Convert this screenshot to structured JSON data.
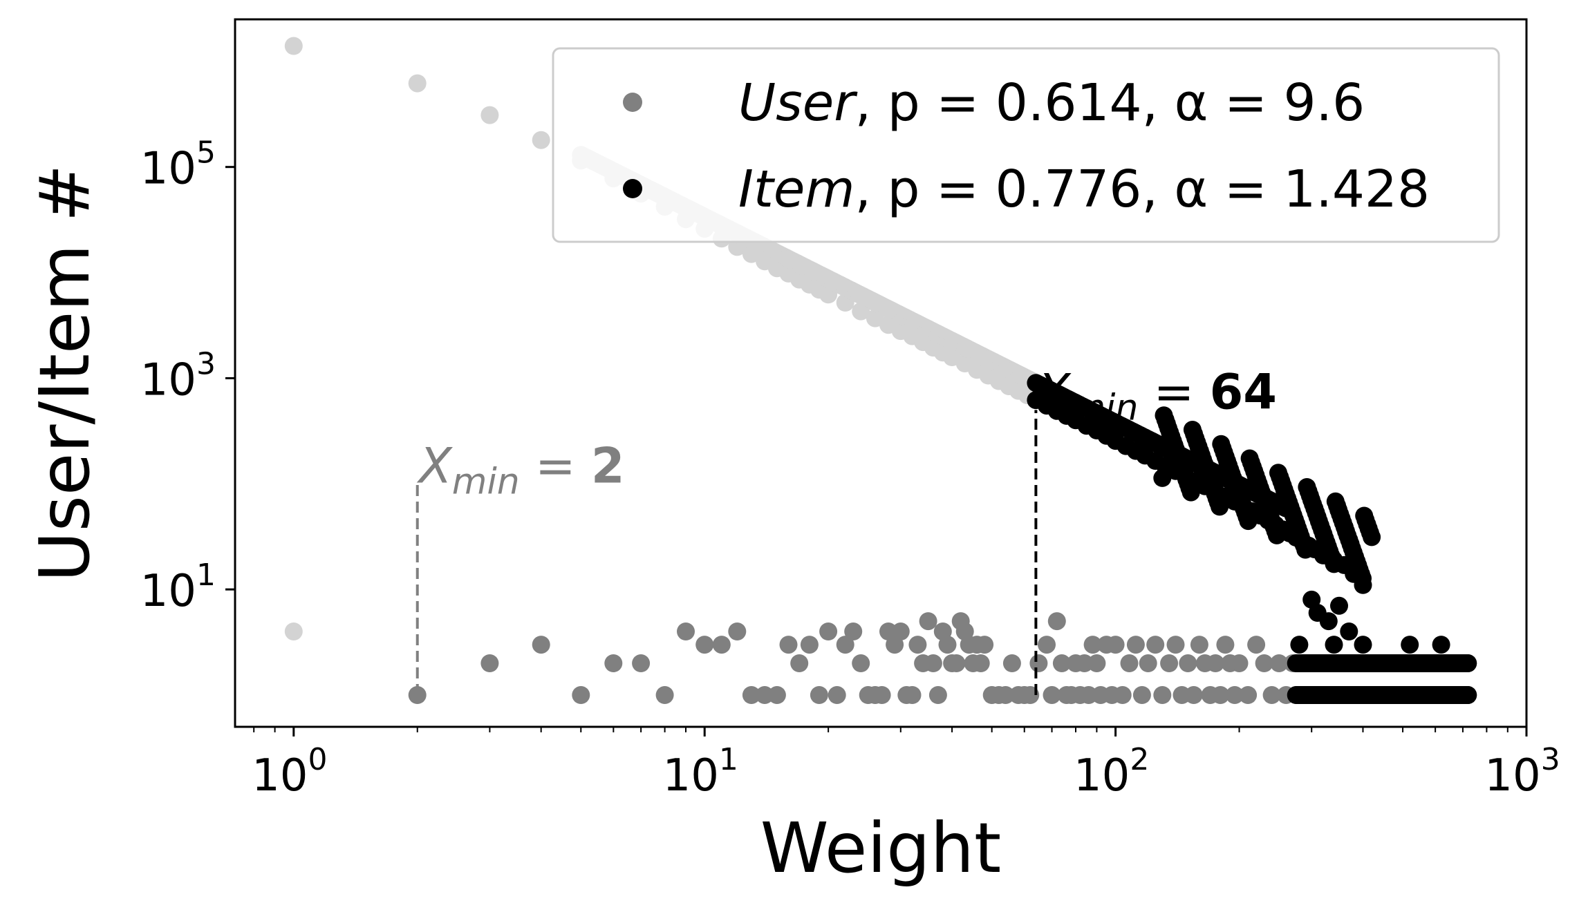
{
  "chart_data": {
    "type": "scatter",
    "xscale": "log",
    "yscale": "log",
    "xlim": [
      0.72,
      1000
    ],
    "ylim": [
      0.5,
      2500000
    ],
    "xlabel": "Weight",
    "ylabel": "User/Item #",
    "grid": false,
    "legend_position": "top-right",
    "x_ticks": [
      {
        "base": "10",
        "exp": "0"
      },
      {
        "base": "10",
        "exp": "1"
      },
      {
        "base": "10",
        "exp": "2"
      },
      {
        "base": "10",
        "exp": "3"
      }
    ],
    "y_ticks": [
      {
        "base": "10",
        "exp": "1"
      },
      {
        "base": "10",
        "exp": "3"
      },
      {
        "base": "10",
        "exp": "5"
      }
    ],
    "legend": [
      {
        "series": "User",
        "text_name": "User",
        "text_p": ", p = 0.614, ",
        "text_alpha": "α = 9.6",
        "color": "#808080"
      },
      {
        "series": "Item",
        "text_name": "Item",
        "text_p": ", p = 0.776, ",
        "text_alpha": "α = 1.428",
        "color": "#000000"
      }
    ],
    "annotations": [
      {
        "series": "User",
        "label": "X",
        "sub": "min",
        "eq": " = ",
        "value": "2",
        "x": 2,
        "y_from": 1,
        "y_to": 100,
        "color": "#808080"
      },
      {
        "series": "Item",
        "label": "X",
        "sub": "min",
        "eq": " = ",
        "value": "64",
        "x": 64,
        "y_from": 1,
        "y_to": 500,
        "color": "#000000"
      }
    ],
    "series": [
      {
        "name": "User",
        "color": "#808080",
        "below_xmin_color": "#d3d3d3",
        "xmin": 2,
        "points": [
          [
            1,
            4
          ],
          [
            2,
            1
          ],
          [
            3,
            2
          ],
          [
            4,
            3
          ],
          [
            5,
            1
          ],
          [
            6,
            2
          ],
          [
            7,
            2
          ],
          [
            8,
            1
          ],
          [
            9,
            4
          ],
          [
            10,
            3
          ],
          [
            11,
            3
          ],
          [
            12,
            4
          ],
          [
            13,
            1
          ],
          [
            14,
            1
          ],
          [
            15,
            1
          ],
          [
            16,
            3
          ],
          [
            17,
            2
          ],
          [
            18,
            3
          ],
          [
            19,
            1
          ],
          [
            20,
            4
          ],
          [
            21,
            1
          ],
          [
            22,
            3
          ],
          [
            23,
            4
          ],
          [
            24,
            2
          ],
          [
            25,
            1
          ],
          [
            26,
            1
          ],
          [
            27,
            1
          ],
          [
            28,
            4
          ],
          [
            29,
            3
          ],
          [
            30,
            4
          ],
          [
            31,
            1
          ],
          [
            32,
            1
          ],
          [
            33,
            3
          ],
          [
            34,
            2
          ],
          [
            35,
            5
          ],
          [
            36,
            2
          ],
          [
            37,
            1
          ],
          [
            38,
            4
          ],
          [
            39,
            3
          ],
          [
            40,
            2
          ],
          [
            41,
            2
          ],
          [
            42,
            5
          ],
          [
            43,
            4
          ],
          [
            44,
            3
          ],
          [
            45,
            2
          ],
          [
            46,
            3
          ],
          [
            47,
            2
          ],
          [
            48,
            3
          ],
          [
            50,
            1
          ],
          [
            52,
            1
          ],
          [
            54,
            1
          ],
          [
            56,
            2
          ],
          [
            58,
            1
          ],
          [
            60,
            1
          ],
          [
            62,
            1
          ],
          [
            65,
            2
          ],
          [
            68,
            3
          ],
          [
            70,
            1
          ],
          [
            72,
            5
          ],
          [
            74,
            2
          ],
          [
            76,
            1
          ],
          [
            78,
            1
          ],
          [
            80,
            2
          ],
          [
            82,
            1
          ],
          [
            84,
            2
          ],
          [
            86,
            1
          ],
          [
            88,
            3
          ],
          [
            90,
            2
          ],
          [
            92,
            1
          ],
          [
            95,
            3
          ],
          [
            98,
            1
          ],
          [
            100,
            3
          ],
          [
            104,
            1
          ],
          [
            108,
            2
          ],
          [
            112,
            3
          ],
          [
            116,
            1
          ],
          [
            120,
            2
          ],
          [
            125,
            3
          ],
          [
            130,
            1
          ],
          [
            135,
            2
          ],
          [
            140,
            3
          ],
          [
            145,
            1
          ],
          [
            150,
            2
          ],
          [
            155,
            1
          ],
          [
            160,
            3
          ],
          [
            165,
            2
          ],
          [
            170,
            1
          ],
          [
            175,
            2
          ],
          [
            180,
            1
          ],
          [
            185,
            3
          ],
          [
            190,
            2
          ],
          [
            195,
            1
          ],
          [
            200,
            2
          ],
          [
            210,
            1
          ],
          [
            220,
            3
          ],
          [
            230,
            2
          ],
          [
            240,
            1
          ],
          [
            250,
            2
          ],
          [
            260,
            1
          ],
          [
            270,
            2
          ],
          [
            280,
            1
          ],
          [
            290,
            2
          ],
          [
            300,
            1
          ],
          [
            320,
            2
          ],
          [
            340,
            1
          ],
          [
            360,
            2
          ],
          [
            380,
            1
          ],
          [
            400,
            2
          ],
          [
            430,
            1
          ],
          [
            460,
            2
          ],
          [
            490,
            1
          ],
          [
            520,
            2
          ],
          [
            550,
            1
          ],
          [
            580,
            2
          ],
          [
            610,
            1
          ],
          [
            640,
            2
          ],
          [
            670,
            1
          ],
          [
            700,
            2
          ],
          [
            720,
            1
          ]
        ]
      },
      {
        "name": "Item",
        "color": "#000000",
        "below_xmin_color": "#d3d3d3",
        "xmin": 64,
        "curve": {
          "fit_x_start": 5,
          "fit_x_end": 260,
          "c": 3000000,
          "slope": 1.95
        },
        "points": [
          [
            1,
            1400000
          ],
          [
            2,
            620000
          ],
          [
            3,
            310000
          ],
          [
            4,
            180000
          ],
          [
            5,
            115000
          ],
          [
            6,
            78000
          ],
          [
            7,
            56000
          ],
          [
            8,
            42000
          ],
          [
            9,
            32000
          ],
          [
            10,
            26000
          ],
          [
            11,
            21000
          ],
          [
            12,
            17500
          ],
          [
            13,
            15000
          ],
          [
            14,
            12800
          ],
          [
            15,
            11000
          ],
          [
            16,
            9800
          ],
          [
            17,
            8600
          ],
          [
            18,
            7700
          ],
          [
            19,
            6900
          ],
          [
            20,
            6200
          ],
          [
            22,
            5200
          ],
          [
            24,
            4300
          ],
          [
            26,
            3700
          ],
          [
            28,
            3200
          ],
          [
            30,
            2800
          ],
          [
            32,
            2500
          ],
          [
            34,
            2200
          ],
          [
            36,
            1950
          ],
          [
            38,
            1750
          ],
          [
            40,
            1580
          ],
          [
            43,
            1380
          ],
          [
            46,
            1200
          ],
          [
            49,
            1060
          ],
          [
            52,
            940
          ],
          [
            55,
            840
          ],
          [
            58,
            760
          ],
          [
            61,
            690
          ],
          [
            64,
            620
          ],
          [
            68,
            550
          ],
          [
            72,
            490
          ],
          [
            76,
            440
          ],
          [
            80,
            400
          ],
          [
            85,
            355
          ],
          [
            90,
            320
          ],
          [
            95,
            285
          ],
          [
            100,
            255
          ],
          [
            106,
            228
          ],
          [
            112,
            205
          ],
          [
            118,
            185
          ],
          [
            125,
            165
          ],
          [
            132,
            148
          ],
          [
            140,
            132
          ],
          [
            148,
            118
          ],
          [
            156,
            106
          ],
          [
            165,
            95
          ],
          [
            175,
            85
          ],
          [
            185,
            76
          ],
          [
            195,
            68
          ],
          [
            205,
            61
          ],
          [
            215,
            55
          ],
          [
            225,
            50
          ],
          [
            235,
            45
          ],
          [
            245,
            41
          ],
          [
            255,
            37
          ],
          [
            265,
            34
          ],
          [
            275,
            31
          ],
          [
            285,
            28
          ],
          [
            295,
            26
          ],
          [
            305,
            24
          ],
          [
            320,
            21
          ],
          [
            340,
            19
          ],
          [
            360,
            17
          ],
          [
            380,
            14
          ],
          [
            400,
            11
          ],
          [
            300,
            8
          ],
          [
            310,
            6
          ],
          [
            330,
            5
          ],
          [
            350,
            7
          ],
          [
            370,
            4
          ],
          [
            280,
            3
          ],
          [
            290,
            2
          ],
          [
            300,
            2
          ],
          [
            320,
            2
          ],
          [
            340,
            3
          ],
          [
            360,
            2
          ],
          [
            380,
            2
          ],
          [
            400,
            3
          ],
          [
            420,
            2
          ],
          [
            440,
            2
          ],
          [
            460,
            2
          ],
          [
            480,
            2
          ],
          [
            500,
            2
          ],
          [
            520,
            3
          ],
          [
            540,
            2
          ],
          [
            560,
            2
          ],
          [
            580,
            2
          ],
          [
            600,
            2
          ],
          [
            620,
            3
          ],
          [
            640,
            2
          ],
          [
            660,
            2
          ],
          [
            680,
            2
          ],
          [
            700,
            2
          ],
          [
            720,
            2
          ],
          [
            280,
            1
          ],
          [
            300,
            1
          ],
          [
            320,
            1
          ],
          [
            340,
            1
          ],
          [
            360,
            1
          ],
          [
            380,
            1
          ],
          [
            400,
            1
          ],
          [
            420,
            1
          ],
          [
            440,
            1
          ],
          [
            460,
            1
          ],
          [
            480,
            1
          ],
          [
            500,
            1
          ],
          [
            520,
            1
          ],
          [
            540,
            1
          ],
          [
            560,
            1
          ],
          [
            580,
            1
          ],
          [
            600,
            1
          ],
          [
            620,
            1
          ],
          [
            640,
            1
          ],
          [
            660,
            1
          ],
          [
            680,
            1
          ],
          [
            700,
            1
          ],
          [
            720,
            1
          ]
        ]
      }
    ]
  }
}
